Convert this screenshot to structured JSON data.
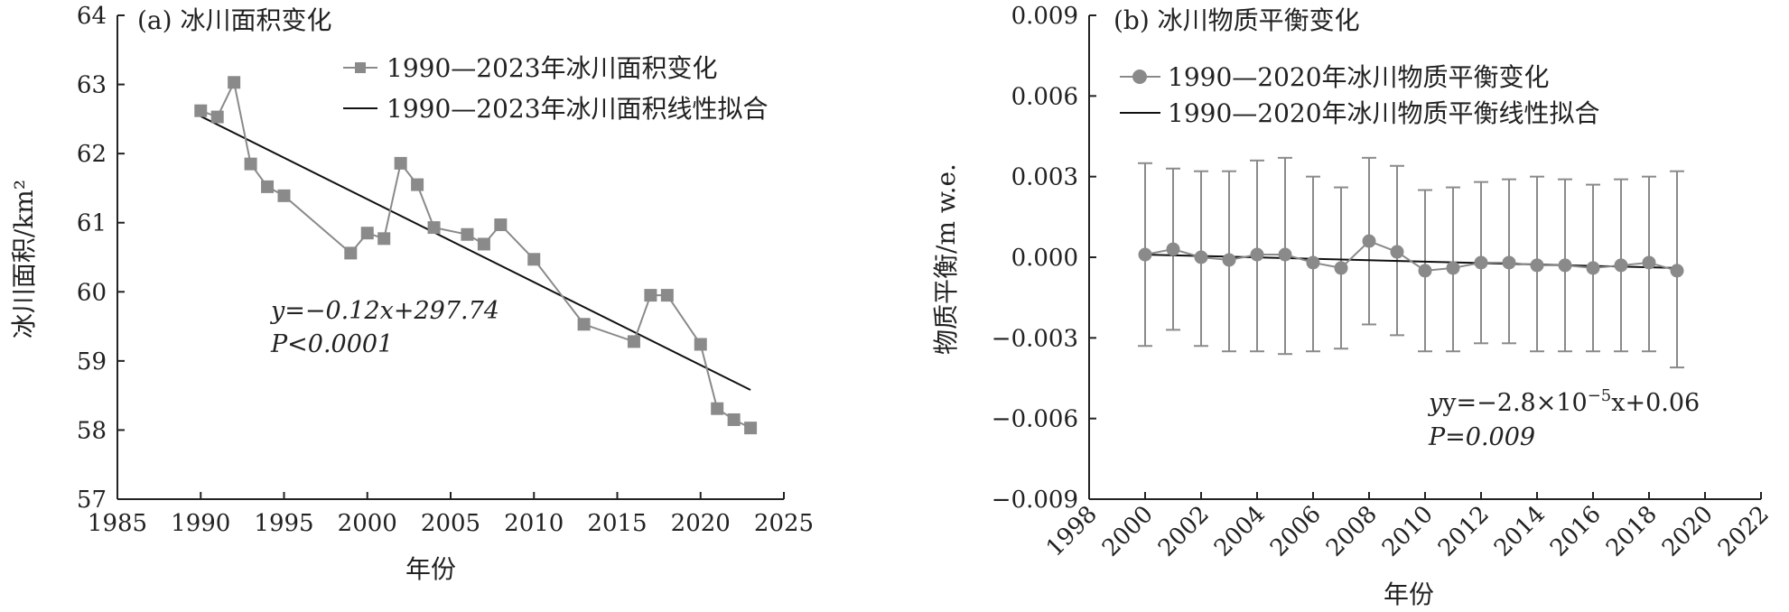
{
  "chart_data": [
    {
      "type": "line",
      "title": "(a) 冰川面积变化",
      "xlabel": "年份",
      "ylabel": "冰川面积/km²",
      "xlim": [
        1985,
        2025
      ],
      "ylim": [
        57,
        64
      ],
      "xticks": [
        1985,
        1990,
        1995,
        2000,
        2005,
        2010,
        2015,
        2020,
        2025
      ],
      "yticks": [
        57,
        58,
        59,
        60,
        61,
        62,
        63,
        64
      ],
      "grid": false,
      "legend_position": "top-right",
      "series": [
        {
          "name": "1990—2023年冰川面积变化",
          "marker": "square",
          "color": "#8a8a8a",
          "x": [
            1990,
            1991,
            1992,
            1993,
            1994,
            1995,
            1999,
            2000,
            2001,
            2002,
            2003,
            2004,
            2006,
            2007,
            2008,
            2010,
            2013,
            2016,
            2017,
            2018,
            2020,
            2021,
            2022,
            2023
          ],
          "y": [
            62.62,
            62.53,
            63.03,
            61.85,
            61.52,
            61.39,
            60.56,
            60.85,
            60.77,
            61.86,
            61.55,
            60.93,
            60.83,
            60.69,
            60.97,
            60.47,
            59.53,
            59.28,
            59.95,
            59.95,
            59.24,
            58.31,
            58.15,
            58.03
          ]
        },
        {
          "name": "1990—2023年冰川面积线性拟合",
          "color": "#111111",
          "fit": {
            "slope": -0.12,
            "intercept": 297.74
          },
          "x": [
            1990,
            2023
          ],
          "y": [
            62.54,
            58.58
          ]
        }
      ],
      "annotations": {
        "equation": "y=−0.12x+297.74",
        "pvalue": "P<0.0001"
      }
    },
    {
      "type": "scatter",
      "title": "(b) 冰川物质平衡变化",
      "xlabel": "年份",
      "ylabel": "物质平衡/m w.e.",
      "xlim": [
        1998,
        2022
      ],
      "ylim": [
        -0.009,
        0.009
      ],
      "xticks": [
        1998,
        2000,
        2002,
        2004,
        2006,
        2008,
        2010,
        2012,
        2014,
        2016,
        2018,
        2020,
        2022
      ],
      "yticks": [
        "-0.009",
        "-0.006",
        "-0.003",
        "0.000",
        "0.003",
        "0.006",
        "0.009"
      ],
      "tick_labels_y": [
        "−0.009",
        "−0.006",
        "−0.003",
        "0.000",
        "0.003",
        "0.006",
        "0.009"
      ],
      "grid": false,
      "legend_position": "top-left",
      "series": [
        {
          "name": "1990—2020年冰川物质平衡变化",
          "marker": "circle",
          "color": "#8a8a8a",
          "x": [
            2000,
            2001,
            2002,
            2003,
            2004,
            2005,
            2006,
            2007,
            2008,
            2009,
            2010,
            2011,
            2012,
            2013,
            2014,
            2015,
            2016,
            2017,
            2018,
            2019
          ],
          "y": [
            0.0001,
            0.0003,
            0.0,
            -0.0001,
            0.0001,
            0.0001,
            -0.0002,
            -0.0004,
            0.0006,
            0.0002,
            -0.0005,
            -0.0004,
            -0.0002,
            -0.0002,
            -0.0003,
            -0.0003,
            -0.0004,
            -0.0003,
            -0.0002,
            -0.0005
          ],
          "err_high": [
            0.0035,
            0.0033,
            0.0032,
            0.0032,
            0.0036,
            0.0037,
            0.003,
            0.0026,
            0.0037,
            0.0034,
            0.0025,
            0.0026,
            0.0028,
            0.0029,
            0.003,
            0.0029,
            0.0027,
            0.0029,
            0.003,
            0.0032
          ],
          "err_low": [
            -0.0033,
            -0.0027,
            -0.0033,
            -0.0035,
            -0.0035,
            -0.0036,
            -0.0035,
            -0.0034,
            -0.0025,
            -0.0029,
            -0.0035,
            -0.0035,
            -0.0032,
            -0.0032,
            -0.0035,
            -0.0035,
            -0.0035,
            -0.0035,
            -0.0035,
            -0.0041
          ]
        },
        {
          "name": "1990—2020年冰川物质平衡线性拟合",
          "color": "#111111",
          "fit": {
            "slope": -2.8e-05,
            "intercept": 0.06
          },
          "x": [
            2000,
            2019
          ],
          "y": [
            0.0001,
            -0.0004
          ]
        }
      ],
      "annotations": {
        "equation_main": "y=−2.8×10",
        "equation_exp": "−5",
        "equation_tail": "x+0.06",
        "pvalue": "P=0.009"
      }
    }
  ]
}
